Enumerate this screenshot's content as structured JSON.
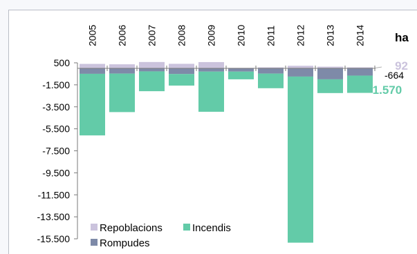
{
  "chart_data": {
    "type": "bar",
    "stacked": true,
    "categories": [
      "2005",
      "2006",
      "2007",
      "2008",
      "2009",
      "2010",
      "2011",
      "2012",
      "2013",
      "2014"
    ],
    "series": [
      {
        "name": "Repoblacions",
        "color": "#cbc3dd",
        "values": [
          402,
          366,
          573,
          410,
          566,
          40,
          90,
          230,
          150,
          92
        ]
      },
      {
        "name": "Rompudes",
        "color": "#7e8aa8",
        "values": [
          -500,
          -480,
          -280,
          -520,
          -300,
          -300,
          -480,
          -750,
          -1000,
          -664
        ]
      },
      {
        "name": "Incendis",
        "color": "#63cba8",
        "values": [
          -5600,
          -3500,
          -1800,
          -1050,
          -3650,
          -700,
          -1330,
          -15100,
          -1250,
          -1570
        ]
      }
    ],
    "unit_label": "ha",
    "yticks": [
      500,
      -1500,
      -3500,
      -5500,
      -7500,
      -9500,
      -11500,
      -13500,
      -15500
    ],
    "ytick_labels": [
      "500",
      "-1.500",
      "-3.500",
      "-5.500",
      "-7.500",
      "-9.500",
      "-11.500",
      "-13.500",
      "-15.500"
    ],
    "ylim": [
      -15500,
      500
    ],
    "annotations": [
      {
        "text": "92",
        "series": "Repoblacions",
        "color": "#cbc3dd"
      },
      {
        "text": "-664",
        "series": "Rompudes",
        "color": "#000000"
      },
      {
        "text": "-1.570",
        "series": "Incendis",
        "color": "#63cba8"
      }
    ],
    "legend": {
      "placement": "bottom-left",
      "entries": [
        "Repoblacions",
        "Incendis",
        "Rompudes"
      ]
    }
  }
}
